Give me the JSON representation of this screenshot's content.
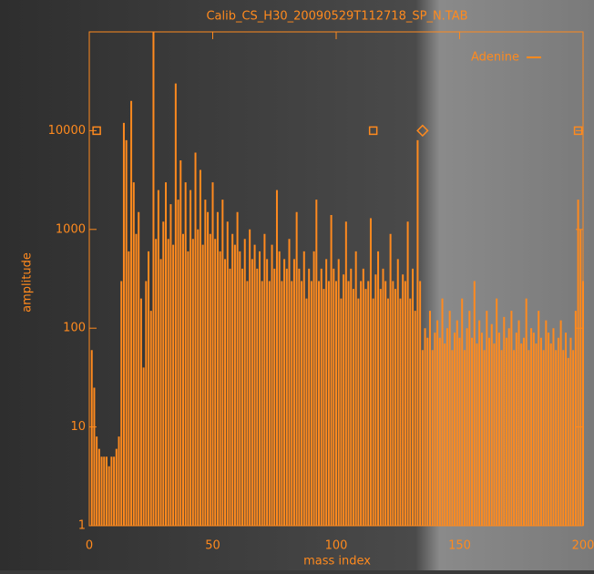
{
  "chart_data": {
    "type": "bar",
    "title": "Calib_CS_H30_20090529T112718_SP_N.TAB",
    "x_label": "mass index",
    "y_label": "amplitude",
    "color": "#ff8a1e",
    "log_y": true,
    "xlim": [
      0,
      200
    ],
    "xticks": [
      0,
      50,
      100,
      150,
      200
    ],
    "ylim": [
      1,
      100000
    ],
    "yticks": [
      1,
      10,
      100,
      1000,
      10000
    ],
    "legend_position": "upper right",
    "x": [
      1,
      2,
      3,
      4,
      5,
      6,
      7,
      8,
      9,
      10,
      11,
      12,
      13,
      14,
      15,
      16,
      17,
      18,
      19,
      20,
      21,
      22,
      23,
      24,
      25,
      26,
      27,
      28,
      29,
      30,
      31,
      32,
      33,
      34,
      35,
      36,
      37,
      38,
      39,
      40,
      41,
      42,
      43,
      44,
      45,
      46,
      47,
      48,
      49,
      50,
      51,
      52,
      53,
      54,
      55,
      56,
      57,
      58,
      59,
      60,
      61,
      62,
      63,
      64,
      65,
      66,
      67,
      68,
      69,
      70,
      71,
      72,
      73,
      74,
      75,
      76,
      77,
      78,
      79,
      80,
      81,
      82,
      83,
      84,
      85,
      86,
      87,
      88,
      89,
      90,
      91,
      92,
      93,
      94,
      95,
      96,
      97,
      98,
      99,
      100,
      101,
      102,
      103,
      104,
      105,
      106,
      107,
      108,
      109,
      110,
      111,
      112,
      113,
      114,
      115,
      116,
      117,
      118,
      119,
      120,
      121,
      122,
      123,
      124,
      125,
      126,
      127,
      128,
      129,
      130,
      131,
      132,
      133,
      134,
      135,
      136,
      137,
      138,
      139,
      140,
      141,
      142,
      143,
      144,
      145,
      146,
      147,
      148,
      149,
      150,
      151,
      152,
      153,
      154,
      155,
      156,
      157,
      158,
      159,
      160,
      161,
      162,
      163,
      164,
      165,
      166,
      167,
      168,
      169,
      170,
      171,
      172,
      173,
      174,
      175,
      176,
      177,
      178,
      179,
      180,
      181,
      182,
      183,
      184,
      185,
      186,
      187,
      188,
      189,
      190,
      191,
      192,
      193,
      194,
      195,
      196,
      197,
      198,
      199,
      200
    ],
    "values": [
      60,
      25,
      8,
      6,
      5,
      5,
      5,
      4,
      5,
      5,
      6,
      8,
      300,
      12000,
      8000,
      600,
      20000,
      3000,
      900,
      1500,
      200,
      40,
      300,
      600,
      150,
      100000,
      800,
      2500,
      500,
      1200,
      3000,
      800,
      1800,
      700,
      30000,
      2000,
      5000,
      900,
      3000,
      600,
      2500,
      800,
      6000,
      1000,
      4000,
      700,
      2000,
      1500,
      900,
      3000,
      800,
      1500,
      600,
      2000,
      500,
      1200,
      400,
      900,
      700,
      1500,
      600,
      400,
      800,
      300,
      1000,
      500,
      700,
      400,
      600,
      300,
      900,
      500,
      300,
      700,
      400,
      2500,
      600,
      300,
      500,
      400,
      800,
      300,
      500,
      1500,
      400,
      300,
      600,
      200,
      400,
      300,
      600,
      2000,
      300,
      400,
      250,
      500,
      300,
      1400,
      400,
      300,
      500,
      200,
      350,
      1200,
      300,
      400,
      250,
      600,
      200,
      300,
      400,
      250,
      300,
      1300,
      200,
      350,
      600,
      250,
      400,
      300,
      200,
      900,
      300,
      250,
      500,
      200,
      350,
      300,
      1200,
      200,
      400,
      150,
      8000,
      300,
      60,
      100,
      80,
      150,
      60,
      90,
      120,
      80,
      200,
      70,
      100,
      150,
      60,
      90,
      120,
      80,
      200,
      60,
      100,
      150,
      80,
      300,
      70,
      120,
      90,
      60,
      150,
      80,
      110,
      70,
      200,
      90,
      60,
      130,
      80,
      100,
      150,
      60,
      90,
      120,
      70,
      80,
      200,
      60,
      100,
      90,
      70,
      150,
      80,
      60,
      120,
      90,
      70,
      100,
      60,
      80,
      120,
      60,
      90,
      50,
      80,
      60,
      150,
      2000,
      1000,
      300
    ],
    "markers": {
      "name": "Adenine",
      "x": [
        3,
        115,
        135,
        198
      ],
      "values": [
        10000,
        10000,
        10000,
        10000
      ]
    }
  }
}
